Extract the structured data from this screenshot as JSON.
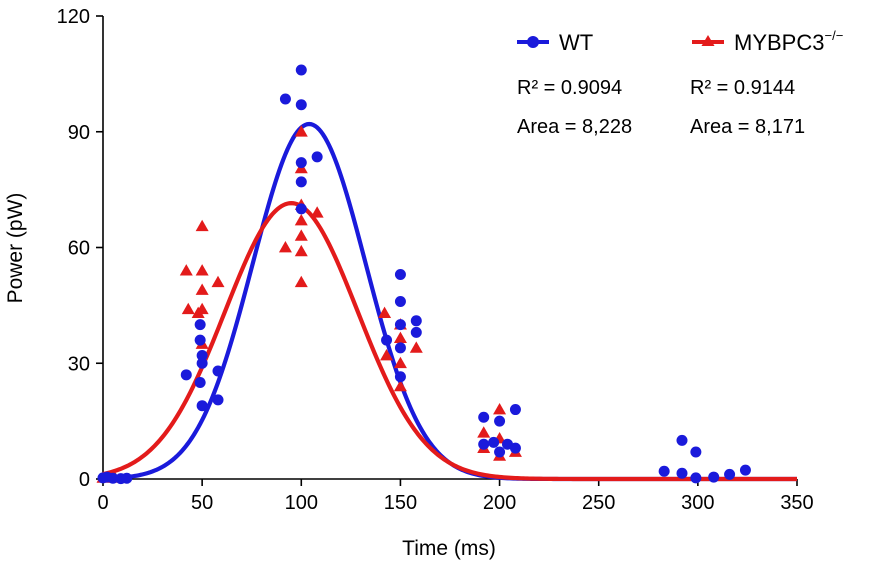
{
  "chart_data": {
    "type": "scatter",
    "title": "",
    "xlabel": "Time (ms)",
    "ylabel": "Power (pW)",
    "xlim": [
      0,
      350
    ],
    "ylim": [
      0,
      120
    ],
    "xticks": [
      "0",
      "50",
      "100",
      "150",
      "200",
      "250",
      "300",
      "350"
    ],
    "yticks": [
      "0",
      "30",
      "60",
      "90",
      "120"
    ],
    "grid": false,
    "legend_position": "top-right",
    "colors": {
      "wt": "#1a1adb",
      "ko": "#e31b1b"
    },
    "series": [
      {
        "name": "WT",
        "marker": "circle",
        "color": "#1a1adb",
        "r2_label": "R² = 0.9094",
        "area_label": "Area = 8,228",
        "fit": {
          "peak": 92,
          "center": 104,
          "sigma": 28.5
        },
        "points": [
          [
            0,
            0.3
          ],
          [
            2,
            0.5
          ],
          [
            5,
            0.2
          ],
          [
            9,
            0.1
          ],
          [
            12,
            0.2
          ],
          [
            42,
            27
          ],
          [
            49,
            40
          ],
          [
            49,
            36
          ],
          [
            50,
            32
          ],
          [
            50,
            30
          ],
          [
            49,
            25
          ],
          [
            50,
            19
          ],
          [
            58,
            28
          ],
          [
            58,
            20.5
          ],
          [
            92,
            98.5
          ],
          [
            100,
            106
          ],
          [
            100,
            97
          ],
          [
            100,
            82
          ],
          [
            100,
            77
          ],
          [
            100,
            70
          ],
          [
            108,
            83.5
          ],
          [
            143,
            36
          ],
          [
            150,
            53
          ],
          [
            150,
            46
          ],
          [
            150,
            40
          ],
          [
            150,
            34
          ],
          [
            150,
            26.5
          ],
          [
            158,
            41
          ],
          [
            158,
            38
          ],
          [
            192,
            16
          ],
          [
            192,
            9
          ],
          [
            197,
            9.5
          ],
          [
            200,
            15
          ],
          [
            200,
            7
          ],
          [
            204,
            9
          ],
          [
            208,
            18
          ],
          [
            208,
            8
          ],
          [
            283,
            2
          ],
          [
            292,
            10
          ],
          [
            292,
            1.5
          ],
          [
            299,
            7
          ],
          [
            299,
            0.3
          ],
          [
            308,
            0.5
          ],
          [
            316,
            1.2
          ],
          [
            324,
            2.3
          ]
        ]
      },
      {
        "name": "MYBPC3",
        "name_superscript": "−/−",
        "marker": "triangle",
        "color": "#e31b1b",
        "r2_label": "R² = 0.9144",
        "area_label": "Area = 8,171",
        "fit": {
          "peak": 71.5,
          "center": 95,
          "sigma": 33.5,
          "baseline": 0
        },
        "points": [
          [
            0,
            0.3
          ],
          [
            6,
            0.3
          ],
          [
            42,
            54
          ],
          [
            43,
            44
          ],
          [
            48,
            43
          ],
          [
            50,
            65.5
          ],
          [
            50,
            54
          ],
          [
            50,
            49
          ],
          [
            50,
            44
          ],
          [
            50,
            35
          ],
          [
            58,
            51
          ],
          [
            92,
            60
          ],
          [
            100,
            90
          ],
          [
            100,
            80.5
          ],
          [
            100,
            71
          ],
          [
            100,
            67
          ],
          [
            100,
            63
          ],
          [
            100,
            59
          ],
          [
            100,
            51
          ],
          [
            108,
            69
          ],
          [
            142,
            43
          ],
          [
            143,
            32
          ],
          [
            150,
            40
          ],
          [
            150,
            36.5
          ],
          [
            150,
            30
          ],
          [
            150,
            24
          ],
          [
            158,
            34
          ],
          [
            192,
            12
          ],
          [
            192,
            8
          ],
          [
            200,
            18
          ],
          [
            200,
            10.5
          ],
          [
            200,
            6
          ],
          [
            208,
            7
          ]
        ]
      }
    ]
  }
}
